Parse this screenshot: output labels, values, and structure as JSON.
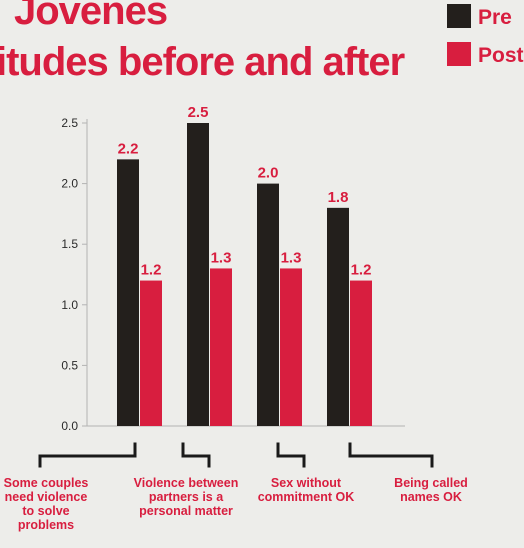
{
  "title_lines": [
    "Jovenes",
    "itudes before and after"
  ],
  "colors": {
    "pre": "#231f1c",
    "post": "#d81e3f",
    "axis": "#b3b3b3",
    "bracket": "#1a1a1a",
    "accent": "#d81e3f"
  },
  "chart_data": {
    "type": "bar",
    "categories": [
      "Some couples need violence to solve problems",
      "Violence between partners is a personal matter",
      "Sex without commitment OK",
      "Being called names OK"
    ],
    "category_label_lines": [
      [
        "Some couples",
        "need violence",
        "to solve",
        "problems"
      ],
      [
        "Violence between",
        "partners is a",
        "personal matter"
      ],
      [
        "Sex without",
        "commitment OK"
      ],
      [
        "Being called",
        "names OK"
      ]
    ],
    "series": [
      {
        "name": "Pre",
        "values": [
          2.2,
          2.5,
          2.0,
          1.8
        ],
        "labels": [
          "2.2",
          "2.5",
          "2.0",
          "1.8"
        ]
      },
      {
        "name": "Post",
        "values": [
          1.2,
          1.3,
          1.3,
          1.2
        ],
        "labels": [
          "1.2",
          "1.3",
          "1.3",
          "1.2"
        ]
      }
    ],
    "yticks": [
      "0.0",
      "0.5",
      "1.0",
      "1.5",
      "2.0",
      "2.5"
    ],
    "ylim": [
      0,
      2.5
    ],
    "legend": "top-right",
    "grid": false
  }
}
